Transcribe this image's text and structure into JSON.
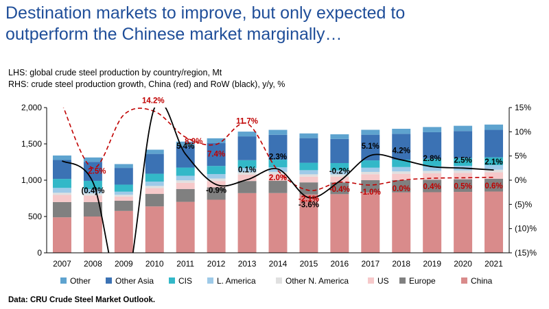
{
  "title_line1": "Destination markets to improve, but only expected to",
  "title_line2": "outperform the Chinese market marginally…",
  "subtitle_lhs": "LHS: global crude steel production by country/region, Mt",
  "subtitle_rhs": "RHS: crude steel production growth, China (red) and RoW (black), y/y, %",
  "source": "Data: CRU Crude Steel Market Outlook.",
  "chart_data": {
    "type": "bar",
    "stacked": true,
    "categories": [
      "2007",
      "2008",
      "2009",
      "2010",
      "2011",
      "2012",
      "2013",
      "2014",
      "2015",
      "2016",
      "2017",
      "2018",
      "2019",
      "2020",
      "2021"
    ],
    "ylim": [
      0,
      2000
    ],
    "y2lim": [
      -15,
      15
    ],
    "yticks": [
      "0",
      "500",
      "1,000",
      "1,500",
      "2,000"
    ],
    "y2ticks": [
      "(15)%",
      "(10)%",
      "(5)%",
      "0%",
      "5%",
      "10%",
      "15%"
    ],
    "series": [
      {
        "name": "China",
        "color": "#d98b8b",
        "values": [
          489,
          500,
          577,
          639,
          702,
          731,
          822,
          823,
          804,
          808,
          832,
          832,
          835,
          839,
          844
        ]
      },
      {
        "name": "Europe",
        "color": "#808080",
        "values": [
          210,
          198,
          140,
          172,
          177,
          170,
          167,
          170,
          166,
          162,
          168,
          170,
          172,
          174,
          176
        ]
      },
      {
        "name": "US",
        "color": "#f6c9ca",
        "values": [
          98,
          91,
          58,
          80,
          86,
          88,
          87,
          88,
          79,
          78,
          82,
          86,
          87,
          88,
          89
        ]
      },
      {
        "name": "Other N. America",
        "color": "#e0e0e0",
        "values": [
          30,
          29,
          24,
          30,
          33,
          34,
          33,
          34,
          32,
          31,
          32,
          33,
          34,
          34,
          35
        ]
      },
      {
        "name": "L. America",
        "color": "#9ecae8",
        "values": [
          67,
          59,
          43,
          60,
          63,
          61,
          59,
          62,
          57,
          55,
          58,
          60,
          62,
          63,
          64
        ]
      },
      {
        "name": "CIS",
        "color": "#33b8c8",
        "values": [
          124,
          114,
          97,
          108,
          113,
          112,
          108,
          105,
          102,
          102,
          101,
          102,
          104,
          106,
          107
        ]
      },
      {
        "name": "Other Asia",
        "color": "#3b72b4",
        "values": [
          260,
          262,
          230,
          273,
          295,
          317,
          327,
          343,
          339,
          332,
          353,
          355,
          367,
          373,
          378
        ]
      },
      {
        "name": "Other",
        "color": "#5ea3cf",
        "values": [
          62,
          60,
          53,
          58,
          62,
          64,
          66,
          68,
          65,
          64,
          68,
          70,
          71,
          72,
          73
        ]
      }
    ],
    "legend": [
      "Other",
      "Other Asia",
      "CIS",
      "L. America",
      "Other N. America",
      "US",
      "Europe",
      "China"
    ],
    "lines": [
      {
        "name": "China growth",
        "color": "#c00000",
        "dash": true,
        "values": [
          15.7,
          2.5,
          13.5,
          14.2,
          8.9,
          7.4,
          11.7,
          2.0,
          -2.1,
          -0.4,
          -1.0,
          0.0,
          0.4,
          0.5,
          0.6
        ],
        "labels": [
          "",
          "2.5%",
          "",
          "14.2%",
          "8.9%",
          "7.4%",
          "11.7%",
          "2.0%",
          "-2.1%",
          "-0.4%",
          "-1.0%",
          "0.0%",
          "0.4%",
          "0.5%",
          "0.6%"
        ]
      },
      {
        "name": "RoW growth",
        "color": "#000000",
        "dash": false,
        "values": [
          4.0,
          -0.4,
          -23.5,
          15.0,
          5.4,
          -0.9,
          0.1,
          2.3,
          -3.6,
          -0.2,
          5.1,
          4.2,
          2.8,
          2.5,
          2.1
        ],
        "labels": [
          "",
          "(0.4)%",
          "",
          "",
          "5.4%",
          "-0.9%",
          "0.1%",
          "2.3%",
          "-3.6%",
          "-0.2%",
          "5.1%",
          "4.2%",
          "2.8%",
          "2.5%",
          "2.1%"
        ]
      }
    ]
  }
}
